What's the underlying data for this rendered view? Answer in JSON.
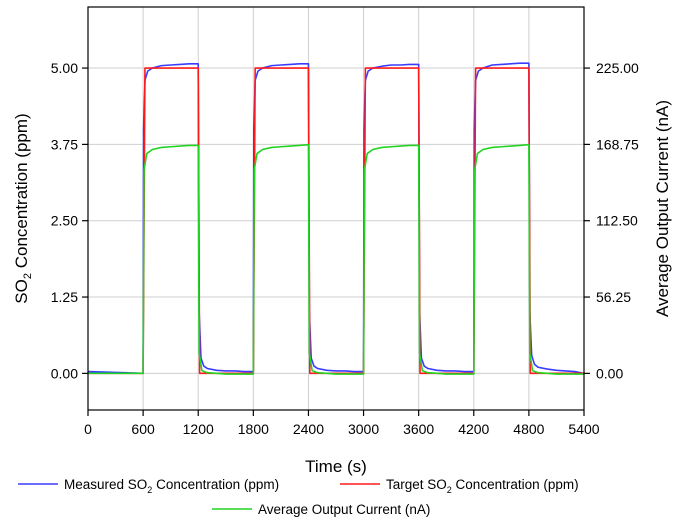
{
  "chart_data": {
    "type": "line",
    "xlabel": "Time (s)",
    "ylabel_main": "SO",
    "ylabel_sub": "2",
    "ylabel_rest": " Concentration (ppm)",
    "y2label": "Average Output Current (nA)",
    "xlim": [
      0,
      5400
    ],
    "ylim": [
      -0.6,
      6.0
    ],
    "y2lim": [
      -27,
      270
    ],
    "x_ticks": [
      0,
      600,
      1200,
      1800,
      2400,
      3000,
      3600,
      4200,
      4800,
      5400
    ],
    "x_tick_labels": [
      "0",
      "600",
      "1200",
      "1800",
      "2400",
      "3000",
      "3600",
      "4200",
      "4800",
      "5400"
    ],
    "y_ticks": [
      0.0,
      1.25,
      2.5,
      3.75,
      5.0
    ],
    "y_tick_labels": [
      "0.00",
      "1.25",
      "2.50",
      "3.75",
      "5.00"
    ],
    "y2_ticks": [
      0.0,
      56.25,
      112.5,
      168.75,
      225.0
    ],
    "y2_tick_labels": [
      "0.00",
      "56.25",
      "112.50",
      "168.75",
      "225.00"
    ],
    "grid": true,
    "legend_position": "bottom",
    "series": [
      {
        "key": "measured",
        "axis": "left",
        "color": "#3b3bff",
        "legend_parts": [
          "Measured SO",
          "2",
          " Concentration (ppm)"
        ],
        "x": [
          0,
          600,
          605,
          620,
          650,
          700,
          800,
          900,
          1000,
          1100,
          1200,
          1210,
          1230,
          1260,
          1300,
          1400,
          1500,
          1600,
          1700,
          1800,
          1805,
          1820,
          1850,
          1900,
          2000,
          2100,
          2200,
          2300,
          2400,
          2410,
          2430,
          2460,
          2500,
          2600,
          2700,
          2800,
          2900,
          3000,
          3005,
          3020,
          3050,
          3100,
          3200,
          3300,
          3400,
          3500,
          3600,
          3610,
          3630,
          3660,
          3700,
          3800,
          3900,
          4000,
          4100,
          4200,
          4205,
          4220,
          4250,
          4300,
          4400,
          4500,
          4600,
          4700,
          4800,
          4810,
          4830,
          4860,
          4900,
          5000,
          5100,
          5200,
          5300,
          5400
        ],
        "y": [
          0.03,
          0.0,
          4.0,
          4.8,
          4.95,
          5.0,
          5.04,
          5.05,
          5.06,
          5.07,
          5.07,
          1.0,
          0.25,
          0.12,
          0.08,
          0.05,
          0.04,
          0.04,
          0.03,
          0.03,
          4.0,
          4.8,
          4.95,
          5.0,
          5.04,
          5.05,
          5.06,
          5.07,
          5.07,
          1.0,
          0.25,
          0.12,
          0.08,
          0.05,
          0.04,
          0.04,
          0.03,
          0.03,
          4.0,
          4.8,
          4.95,
          5.0,
          5.03,
          5.05,
          5.05,
          5.06,
          5.06,
          1.0,
          0.25,
          0.12,
          0.08,
          0.05,
          0.04,
          0.04,
          0.03,
          0.03,
          4.0,
          4.8,
          4.95,
          5.0,
          5.05,
          5.06,
          5.07,
          5.08,
          5.08,
          1.0,
          0.3,
          0.15,
          0.1,
          0.07,
          0.05,
          0.04,
          0.03,
          0.0
        ]
      },
      {
        "key": "target",
        "axis": "left",
        "color": "#ff1a1a",
        "legend_parts": [
          "Target SO",
          "2",
          " Concentration (ppm)"
        ],
        "x": [
          0,
          600,
          620,
          1200,
          1215,
          1800,
          1820,
          2400,
          2415,
          3000,
          3020,
          3600,
          3615,
          4200,
          4220,
          4800,
          4815,
          5400
        ],
        "y": [
          0,
          0,
          5,
          5,
          0,
          0,
          5,
          5,
          0,
          0,
          5,
          5,
          0,
          0,
          5,
          5,
          0,
          0
        ]
      },
      {
        "key": "current",
        "axis": "right",
        "color": "#22d322",
        "legend_parts": [
          "Average Output Current (nA)"
        ],
        "x": [
          0,
          600,
          610,
          640,
          700,
          800,
          900,
          1000,
          1100,
          1200,
          1210,
          1240,
          1300,
          1400,
          1500,
          1600,
          1700,
          1800,
          1810,
          1840,
          1900,
          2000,
          2100,
          2200,
          2300,
          2400,
          2410,
          2440,
          2500,
          2600,
          2700,
          2800,
          2900,
          3000,
          3010,
          3040,
          3100,
          3200,
          3300,
          3400,
          3500,
          3600,
          3610,
          3640,
          3700,
          3800,
          3900,
          4000,
          4100,
          4200,
          4210,
          4240,
          4300,
          4400,
          4500,
          4600,
          4700,
          4800,
          4810,
          4840,
          4900,
          5000,
          5100,
          5200,
          5300,
          5400
        ],
        "y": [
          0,
          0,
          150,
          162,
          165,
          166.5,
          167,
          167.5,
          168,
          168,
          15,
          2,
          0.5,
          0,
          -0.5,
          -0.5,
          -0.5,
          -0.5,
          150,
          162,
          165,
          166.5,
          167,
          167.5,
          168,
          168.5,
          15,
          2,
          0.5,
          0,
          -0.5,
          -0.5,
          -0.5,
          -0.5,
          150,
          162,
          165,
          166.5,
          167,
          167.5,
          168,
          168,
          15,
          2,
          0.5,
          0,
          -0.5,
          -0.5,
          -0.5,
          -0.5,
          150,
          162,
          165,
          166.5,
          167,
          167.5,
          168,
          168.5,
          15,
          2,
          0.5,
          0,
          -0.5,
          -0.5,
          -0.5,
          -0.5
        ]
      }
    ]
  }
}
